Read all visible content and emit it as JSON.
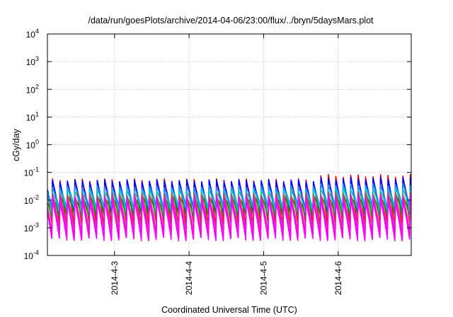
{
  "chart_data": {
    "type": "line",
    "title": "/data/run/goesPlots/archive/2014-04-06/23:00/flux/../bryn/5daysMars.plot",
    "xlabel": "Coordinated Universal Time (UTC)",
    "ylabel": "cGy/day",
    "yscale": "log",
    "ylim": [
      0.0001,
      10000
    ],
    "xlim_days_since_2014_4_2": [
      0.1,
      4.98
    ],
    "grid": true,
    "x_ticks": [
      {
        "label": "2014-4-3",
        "day": 1
      },
      {
        "label": "2014-4-4",
        "day": 2
      },
      {
        "label": "2014-4-5",
        "day": 3
      },
      {
        "label": "2014-4-6",
        "day": 4
      }
    ],
    "y_ticks": [
      {
        "base": "10",
        "exp": "-4",
        "value": 0.0001
      },
      {
        "base": "10",
        "exp": "-3",
        "value": 0.001
      },
      {
        "base": "10",
        "exp": "-2",
        "value": 0.01
      },
      {
        "base": "10",
        "exp": "-1",
        "value": 0.1
      },
      {
        "base": "10",
        "exp": "0",
        "value": 1
      },
      {
        "base": "10",
        "exp": "1",
        "value": 10
      },
      {
        "base": "10",
        "exp": "2",
        "value": 100
      },
      {
        "base": "10",
        "exp": "3",
        "value": 1000
      },
      {
        "base": "10",
        "exp": "4",
        "value": 10000
      }
    ],
    "cycle_period_days": 0.1,
    "series": [
      {
        "color": "#ff0000",
        "peak": 0.052,
        "trough": 0.0014,
        "late_peak": 0.075
      },
      {
        "color": "#0000ff",
        "peak": 0.05,
        "trough": 0.0035,
        "late_peak": 0.06
      },
      {
        "color": "#1a8cff",
        "peak": 0.03,
        "trough": 0.006,
        "late_peak": 0.035
      },
      {
        "color": "#00c8c8",
        "peak": 0.022,
        "trough": 0.0045,
        "late_peak": 0.025
      },
      {
        "color": "#00a000",
        "peak": 0.015,
        "trough": 0.0028,
        "late_peak": 0.017
      },
      {
        "color": "#cc4477",
        "peak": 0.016,
        "trough": 0.0009,
        "late_peak": 0.018
      },
      {
        "color": "#ff00ff",
        "peak": 0.012,
        "trough": 0.00055,
        "late_peak": 0.013
      },
      {
        "color": "#ff00ff",
        "peak": 0.009,
        "trough": 0.0004,
        "late_peak": 0.0095
      }
    ]
  }
}
